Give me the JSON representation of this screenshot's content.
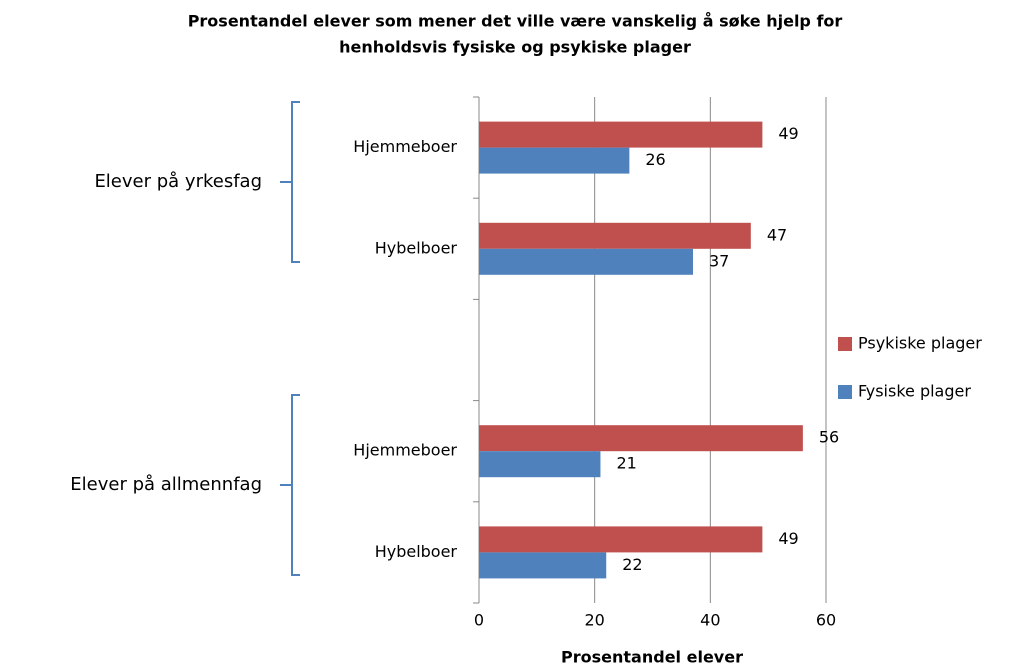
{
  "chart_data": {
    "type": "bar",
    "orientation": "horizontal",
    "title": [
      "Prosentandel elever som mener det ville være vanskelig å søke hjelp for",
      "henholdsvis fysiske og psykiske plager"
    ],
    "categories": [
      "Hjemmeboer",
      "Hybelboer",
      null,
      "Hjemmeboer",
      "Hybelboer"
    ],
    "groups": [
      "Elever på yrkesfag",
      "Elever på allmennfag"
    ],
    "series": [
      {
        "name": "Psykiske plager",
        "color": "#c0504d",
        "values": [
          49,
          47,
          null,
          56,
          49
        ]
      },
      {
        "name": "Fysiske plager",
        "color": "#4f81bd",
        "values": [
          26,
          37,
          null,
          21,
          22
        ]
      }
    ],
    "xlabel": "Prosentandel elever",
    "xlim": [
      0,
      60
    ],
    "xticks": [
      0,
      20,
      40,
      60
    ],
    "grid": true,
    "legend": "right"
  }
}
